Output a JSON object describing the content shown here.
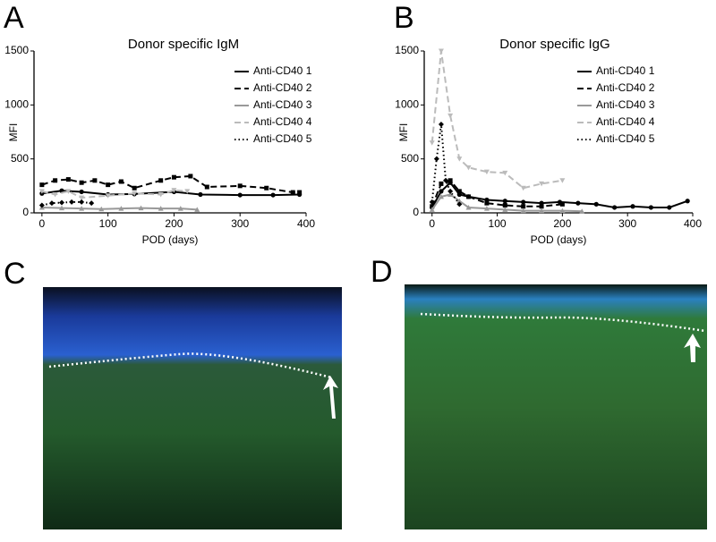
{
  "chart_data": [
    {
      "type": "line",
      "panel_label": "A",
      "title": "Donor specific IgM",
      "x_label": "POD (days)",
      "y_label": "MFI",
      "xlim": [
        -12,
        400
      ],
      "xticks": [
        0,
        100,
        200,
        300,
        400
      ],
      "ylim": [
        0,
        1500
      ],
      "yticks": [
        0,
        500,
        1000,
        1500
      ],
      "series": [
        {
          "name": "Anti-CD40 1",
          "color": "#000000",
          "dash": "solid",
          "marker": "circle",
          "x": [
            0,
            30,
            60,
            100,
            140,
            200,
            240,
            300,
            350,
            390
          ],
          "values": [
            180,
            205,
            195,
            170,
            175,
            195,
            170,
            165,
            165,
            170
          ]
        },
        {
          "name": "Anti-CD40 2",
          "color": "#000000",
          "dash": "dashed",
          "marker": "square",
          "x": [
            0,
            20,
            40,
            60,
            80,
            100,
            120,
            140,
            180,
            200,
            225,
            250,
            300,
            340,
            380,
            390
          ],
          "values": [
            260,
            300,
            310,
            280,
            300,
            260,
            290,
            230,
            300,
            330,
            340,
            240,
            250,
            230,
            190,
            190
          ]
        },
        {
          "name": "Anti-CD40 3",
          "color": "#999999",
          "dash": "solid",
          "marker": "triangle",
          "x": [
            0,
            30,
            60,
            90,
            120,
            150,
            180,
            210,
            235
          ],
          "values": [
            50,
            45,
            40,
            35,
            40,
            45,
            40,
            40,
            30
          ]
        },
        {
          "name": "Anti-CD40 4",
          "color": "#bbbbbb",
          "dash": "dashed",
          "marker": "triangle-down",
          "x": [
            0,
            20,
            40,
            60,
            100,
            140,
            180,
            200,
            220
          ],
          "values": [
            200,
            170,
            200,
            140,
            160,
            180,
            170,
            210,
            200
          ]
        },
        {
          "name": "Anti-CD40 5",
          "color": "#000000",
          "dash": "dotted",
          "marker": "diamond",
          "x": [
            0,
            15,
            30,
            45,
            60,
            75
          ],
          "values": [
            70,
            90,
            95,
            100,
            100,
            90
          ]
        }
      ]
    },
    {
      "type": "line",
      "panel_label": "B",
      "title": "Donor specific IgG",
      "x_label": "POD (days)",
      "y_label": "MFI",
      "xlim": [
        -12,
        400
      ],
      "xticks": [
        0,
        100,
        200,
        300,
        400
      ],
      "ylim": [
        0,
        1500
      ],
      "yticks": [
        0,
        500,
        1000,
        1500
      ],
      "series": [
        {
          "name": "Anti-CD40 1",
          "color": "#000000",
          "dash": "solid",
          "marker": "circle",
          "x": [
            0,
            14,
            28,
            42,
            56,
            84,
            112,
            140,
            168,
            196,
            224,
            252,
            280,
            308,
            336,
            364,
            392
          ],
          "values": [
            50,
            200,
            280,
            170,
            150,
            120,
            110,
            100,
            90,
            100,
            90,
            80,
            50,
            60,
            50,
            50,
            110
          ]
        },
        {
          "name": "Anti-CD40 2",
          "color": "#000000",
          "dash": "dashed",
          "marker": "square",
          "x": [
            0,
            14,
            28,
            42,
            56,
            84,
            112,
            140,
            168,
            200
          ],
          "values": [
            60,
            270,
            300,
            200,
            150,
            90,
            70,
            60,
            60,
            80
          ]
        },
        {
          "name": "Anti-CD40 3",
          "color": "#999999",
          "dash": "solid",
          "marker": "triangle",
          "x": [
            0,
            14,
            28,
            42,
            56,
            84,
            112,
            140,
            168,
            200,
            230
          ],
          "values": [
            30,
            150,
            170,
            110,
            50,
            40,
            30,
            20,
            20,
            20,
            15
          ]
        },
        {
          "name": "Anti-CD40 4",
          "color": "#bbbbbb",
          "dash": "dashed",
          "marker": "triangle-down",
          "x": [
            0,
            14,
            28,
            42,
            56,
            84,
            112,
            140,
            168,
            200
          ],
          "values": [
            650,
            1500,
            900,
            500,
            420,
            380,
            370,
            230,
            270,
            300
          ]
        },
        {
          "name": "Anti-CD40 5",
          "color": "#000000",
          "dash": "dotted",
          "marker": "diamond",
          "x": [
            0,
            7,
            14,
            21,
            28,
            42
          ],
          "values": [
            100,
            500,
            820,
            300,
            200,
            80
          ]
        }
      ]
    }
  ],
  "images": [
    {
      "label": "C"
    },
    {
      "label": "D"
    }
  ]
}
